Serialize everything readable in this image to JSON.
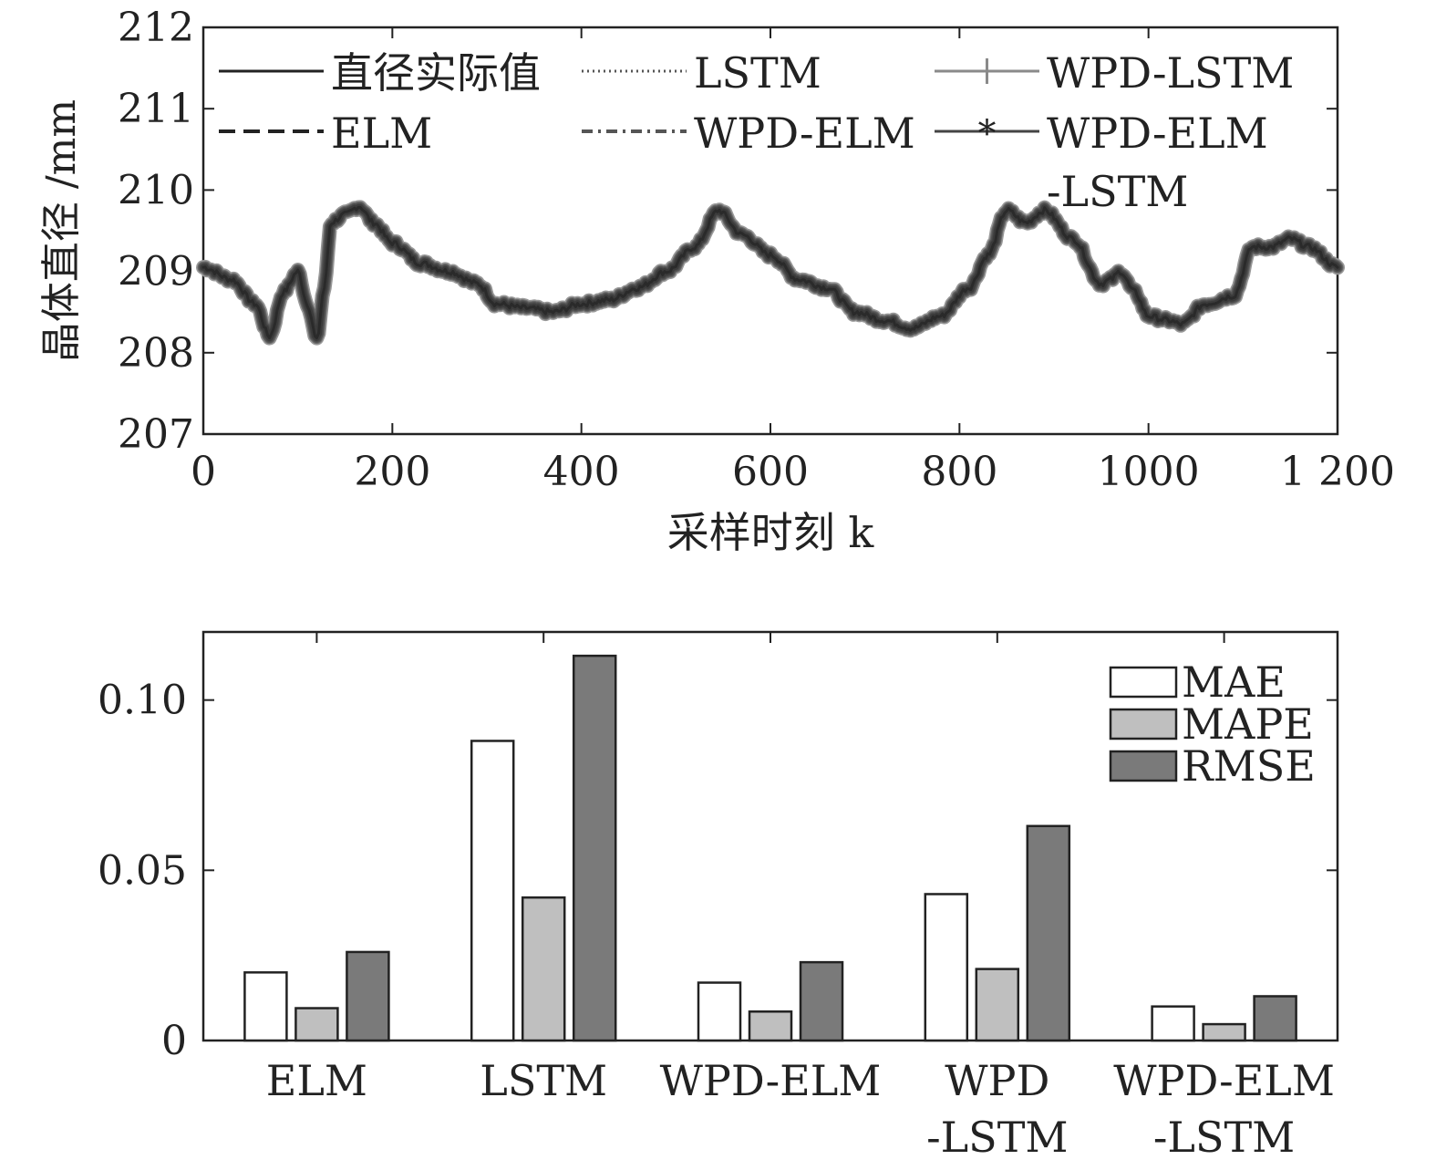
{
  "chart_data": [
    {
      "type": "line",
      "xlabel": "采样时刻 k",
      "ylabel": "晶体直径 /mm",
      "xlim": [
        0,
        1200
      ],
      "ylim": [
        207,
        212
      ],
      "xticks": [
        0,
        200,
        400,
        600,
        800,
        1000,
        1200
      ],
      "xtick_labels": [
        "0",
        "200",
        "400",
        "600",
        "800",
        "1000",
        "1 200"
      ],
      "yticks": [
        207,
        208,
        209,
        210,
        211,
        212
      ],
      "ytick_labels": [
        "207",
        "208",
        "209",
        "210",
        "211",
        "212"
      ],
      "grid": false,
      "legend_position": "top",
      "legend": [
        {
          "label": "直径实际值",
          "style": "solid"
        },
        {
          "label": "LSTM",
          "style": "dotted"
        },
        {
          "label": "WPD-LSTM",
          "style": "plus"
        },
        {
          "label": "ELM",
          "style": "dashed"
        },
        {
          "label": "WPD-ELM",
          "style": "dashdot"
        },
        {
          "label": "WPD-ELM",
          "label2": "-LSTM",
          "style": "star"
        }
      ],
      "series_keypoints": {
        "x": [
          0,
          30,
          55,
          70,
          85,
          100,
          110,
          120,
          128,
          135,
          150,
          165,
          180,
          200,
          230,
          260,
          290,
          310,
          340,
          370,
          400,
          430,
          460,
          490,
          520,
          545,
          570,
          600,
          630,
          660,
          690,
          720,
          750,
          780,
          810,
          830,
          850,
          870,
          890,
          920,
          950,
          960,
          970,
          985,
          1000,
          1020,
          1035,
          1060,
          1090,
          1110,
          1130,
          1150,
          1170,
          1200
        ],
        "y": [
          209.05,
          208.9,
          208.6,
          208.2,
          208.75,
          209.0,
          208.6,
          208.15,
          208.8,
          209.6,
          209.7,
          209.8,
          209.6,
          209.35,
          209.1,
          209.0,
          208.85,
          208.6,
          208.55,
          208.5,
          208.6,
          208.65,
          208.8,
          209.0,
          209.3,
          209.75,
          209.45,
          209.2,
          208.9,
          208.8,
          208.5,
          208.4,
          208.3,
          208.45,
          208.8,
          209.2,
          209.75,
          209.6,
          209.75,
          209.4,
          208.85,
          208.9,
          209.0,
          208.75,
          208.45,
          208.4,
          208.35,
          208.6,
          208.7,
          209.3,
          209.3,
          209.4,
          209.3,
          209.05
        ]
      }
    },
    {
      "type": "bar",
      "categories": [
        {
          "line1": "ELM",
          "line2": ""
        },
        {
          "line1": "LSTM",
          "line2": ""
        },
        {
          "line1": "WPD-ELM",
          "line2": ""
        },
        {
          "line1": "WPD",
          "line2": "-LSTM"
        },
        {
          "line1": "WPD-ELM",
          "line2": "-LSTM"
        }
      ],
      "series": [
        {
          "name": "MAE",
          "color": "#ffffff",
          "values": [
            0.02,
            0.088,
            0.017,
            0.043,
            0.01
          ]
        },
        {
          "name": "MAPE",
          "color": "#bfbfbf",
          "values": [
            0.0095,
            0.042,
            0.0085,
            0.021,
            0.0048
          ]
        },
        {
          "name": "RMSE",
          "color": "#7a7a7a",
          "values": [
            0.026,
            0.113,
            0.023,
            0.063,
            0.013
          ]
        }
      ],
      "ylim": [
        0,
        0.12
      ],
      "yticks": [
        0,
        0.05,
        0.1
      ],
      "ytick_labels": [
        "0",
        "0.05",
        "0.10"
      ],
      "grid": false,
      "legend_position": "top-right"
    }
  ]
}
